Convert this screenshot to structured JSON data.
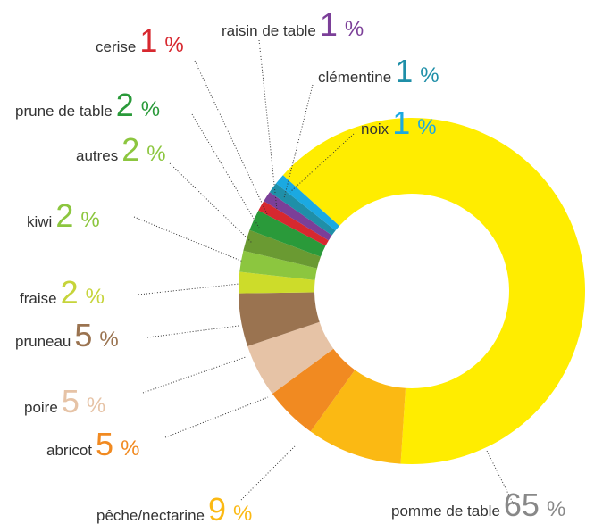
{
  "chart_data": {
    "type": "donut",
    "unit": "%",
    "categories": [
      "pomme de table",
      "pêche/nectarine",
      "abricot",
      "poire",
      "pruneau",
      "fraise",
      "kiwi",
      "autres",
      "prune de table",
      "cerise",
      "raisin de table",
      "clémentine",
      "noix"
    ],
    "values": [
      65,
      9,
      5,
      5,
      5,
      2,
      2,
      2,
      2,
      1,
      1,
      1,
      1
    ],
    "colors": [
      "#ffed00",
      "#fbb913",
      "#f18a21",
      "#e6c3a6",
      "#9a7350",
      "#cddc2a",
      "#8cc63f",
      "#6a9a32",
      "#2a9a3a",
      "#d7282f",
      "#7b3f98",
      "#1f8fa8",
      "#1ba9e1"
    ]
  }
}
